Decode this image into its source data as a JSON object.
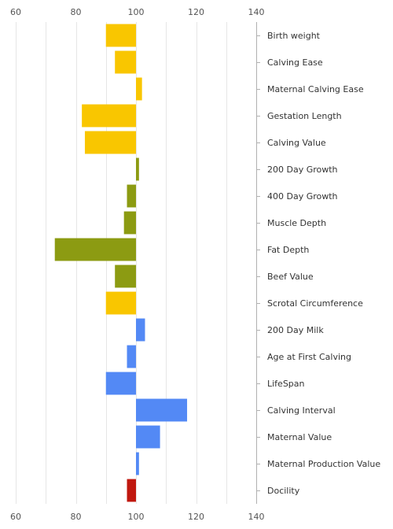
{
  "chart_data": {
    "type": "bar",
    "orientation": "horizontal",
    "baseline": 100,
    "xlim": [
      60,
      140
    ],
    "xticks": [
      60,
      80,
      100,
      120,
      140
    ],
    "grid": true,
    "legend": "none",
    "categories": [
      "Birth weight",
      "Calving Ease",
      "Maternal Calving Ease",
      "Gestation Length",
      "Calving Value",
      "200 Day Growth",
      "400 Day Growth",
      "Muscle Depth",
      "Fat Depth",
      "Beef Value",
      "Scrotal Circumference",
      "200 Day Milk",
      "Age at First Calving",
      "LifeSpan",
      "Calving Interval",
      "Maternal Value",
      "Maternal Production Value",
      "Docility"
    ],
    "values": [
      90,
      93,
      102,
      82,
      83,
      101,
      97,
      96,
      73,
      93,
      90,
      103,
      97,
      90,
      117,
      108,
      101,
      97
    ],
    "colors": [
      "#f9c600",
      "#f9c600",
      "#f9c600",
      "#f9c600",
      "#f9c600",
      "#8c9b12",
      "#8c9b12",
      "#8c9b12",
      "#8c9b12",
      "#8c9b12",
      "#f9c600",
      "#5389f5",
      "#5389f5",
      "#5389f5",
      "#5389f5",
      "#5389f5",
      "#5389f5",
      "#c0180f"
    ]
  }
}
